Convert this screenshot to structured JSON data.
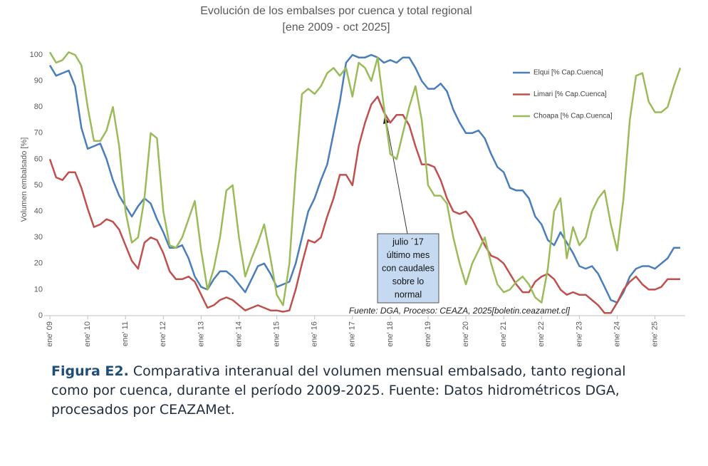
{
  "chart_data": {
    "type": "line",
    "title": "Evolución de los embalses por cuenca y total regional",
    "subtitle": "[ene 2009 - oct 2025]",
    "y_label": "Volumen embalsado [%]",
    "ylim": [
      0,
      100
    ],
    "yticks": [
      0,
      10,
      20,
      30,
      40,
      50,
      60,
      70,
      80,
      90,
      100
    ],
    "grid": false,
    "legend": "top-right",
    "categories": [
      "ene' 09",
      null,
      null,
      null,
      null,
      null,
      "ene' 10",
      null,
      null,
      null,
      null,
      null,
      "ene' 11",
      null,
      null,
      null,
      null,
      null,
      "ene' 12",
      null,
      null,
      null,
      null,
      null,
      "ene' 13",
      null,
      null,
      null,
      null,
      null,
      "ene' 14",
      null,
      null,
      null,
      null,
      null,
      "ene' 15",
      null,
      null,
      null,
      null,
      null,
      "ene' 16",
      null,
      null,
      null,
      null,
      null,
      "ene' 17",
      null,
      null,
      null,
      null,
      null,
      "ene' 18",
      null,
      null,
      null,
      null,
      null,
      "ene' 19",
      null,
      null,
      null,
      null,
      null,
      "ene' 20",
      null,
      null,
      null,
      null,
      null,
      "ene' 21",
      null,
      null,
      null,
      null,
      null,
      "ene' 22",
      null,
      null,
      null,
      null,
      null,
      "ene' 23",
      null,
      null,
      null,
      null,
      null,
      "ene' 24",
      null,
      null,
      null,
      null,
      null,
      "ene' 25",
      null,
      null,
      null,
      null
    ],
    "series": [
      {
        "name": "Elqui [% Cap.Cuenca]",
        "color": "#4a7ebb",
        "values": [
          96,
          92,
          93,
          94,
          88,
          72,
          64,
          65,
          66,
          60,
          52,
          46,
          42,
          38,
          42,
          45,
          43,
          37,
          32,
          26,
          26,
          27,
          22,
          15,
          11,
          10,
          14,
          17,
          17,
          15,
          12,
          9,
          14,
          19,
          20,
          16,
          11,
          12,
          13,
          20,
          30,
          40,
          45,
          52,
          58,
          70,
          82,
          97,
          100,
          99,
          99,
          100,
          99,
          97,
          98,
          97,
          99,
          99,
          95,
          90,
          87,
          87,
          89,
          86,
          79,
          74,
          70,
          70,
          71,
          68,
          62,
          57,
          55,
          49,
          48,
          48,
          45,
          38,
          35,
          29,
          27,
          32,
          28,
          24,
          19,
          18,
          19,
          16,
          11,
          6,
          5,
          9,
          15,
          18,
          19,
          19,
          18,
          20,
          22,
          26,
          26
        ]
      },
      {
        "name": "Limari [% Cap.Cuenca]",
        "color": "#c0504d",
        "values": [
          60,
          53,
          52,
          55,
          55,
          49,
          41,
          34,
          35,
          37,
          36,
          33,
          27,
          21,
          18,
          28,
          30,
          29,
          24,
          17,
          14,
          14,
          15,
          13,
          8,
          3,
          4,
          6,
          7,
          6,
          4,
          2,
          3,
          4,
          3,
          2,
          2,
          1.5,
          2,
          10,
          20,
          29,
          28,
          30,
          38,
          45,
          54,
          54,
          50,
          65,
          74,
          81,
          84,
          78,
          74,
          77,
          77,
          73,
          65,
          58,
          58,
          57,
          52,
          45,
          40,
          39,
          40,
          37,
          32,
          27,
          23,
          22,
          20,
          16,
          12,
          9,
          9,
          13,
          15,
          16,
          14,
          10,
          8,
          9,
          8,
          8,
          6,
          4,
          1,
          1,
          5,
          10,
          13,
          15,
          12,
          10,
          10,
          11,
          14,
          14,
          14
        ]
      },
      {
        "name": "Choapa [% Cap.Cuenca]",
        "color": "#9bbb59",
        "values": [
          101,
          97,
          98,
          101,
          100,
          96,
          80,
          67,
          67,
          71,
          80,
          65,
          40,
          28,
          30,
          45,
          70,
          68,
          40,
          27,
          26,
          30,
          37,
          44,
          25,
          10,
          18,
          30,
          48,
          50,
          30,
          15,
          22,
          28,
          35,
          22,
          8,
          4,
          20,
          55,
          85,
          87,
          85,
          88,
          93,
          95,
          92,
          95,
          84,
          97,
          95,
          90,
          99,
          80,
          62,
          60,
          70,
          80,
          88,
          75,
          50,
          46,
          46,
          43,
          30,
          20,
          12,
          20,
          25,
          30,
          20,
          12,
          9,
          10,
          13,
          15,
          12,
          7,
          5,
          18,
          40,
          45,
          22,
          34,
          27,
          30,
          40,
          45,
          48,
          35,
          25,
          45,
          75,
          92,
          93,
          82,
          78,
          78,
          80,
          88,
          95
        ]
      }
    ],
    "annotation": {
      "lines": [
        "julio ´17",
        "último mes",
        "con caudales",
        "sobre lo",
        "normal"
      ]
    },
    "source": "Fuente: DGA, Proceso: CEAZA, 2025[boletin.ceazamet.cl]"
  },
  "caption": {
    "label": "Figura E2.",
    "text": "Comparativa interanual del volumen mensual embalsado, tanto regional como por cuenca, durante el período 2009-2025. Fuente: Datos hidrométricos DGA, procesados por CEAZAMet."
  }
}
